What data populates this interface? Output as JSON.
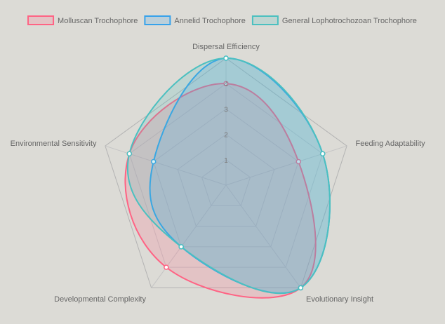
{
  "chart_data": {
    "type": "radar",
    "axes": [
      "Dispersal Efficiency",
      "Feeding Adaptability",
      "Evolutionary Insight",
      "Developmental Complexity",
      "Environmental Sensitivity"
    ],
    "r_range": [
      0,
      5
    ],
    "ticks": [
      "1",
      "2",
      "3",
      "4"
    ],
    "grid": true,
    "legend_position": "top",
    "series": [
      {
        "name": "Molluscan Trochophore",
        "values": [
          4,
          3,
          5,
          4,
          4
        ],
        "color": "#ff6384"
      },
      {
        "name": "Annelid Trochophore",
        "values": [
          5,
          4,
          5,
          3,
          3
        ],
        "color": "#36a2eb"
      },
      {
        "name": "General Lophotrochozoan Trochophore",
        "values": [
          5,
          4,
          5,
          3,
          4
        ],
        "color": "#4bc0c0"
      }
    ]
  }
}
